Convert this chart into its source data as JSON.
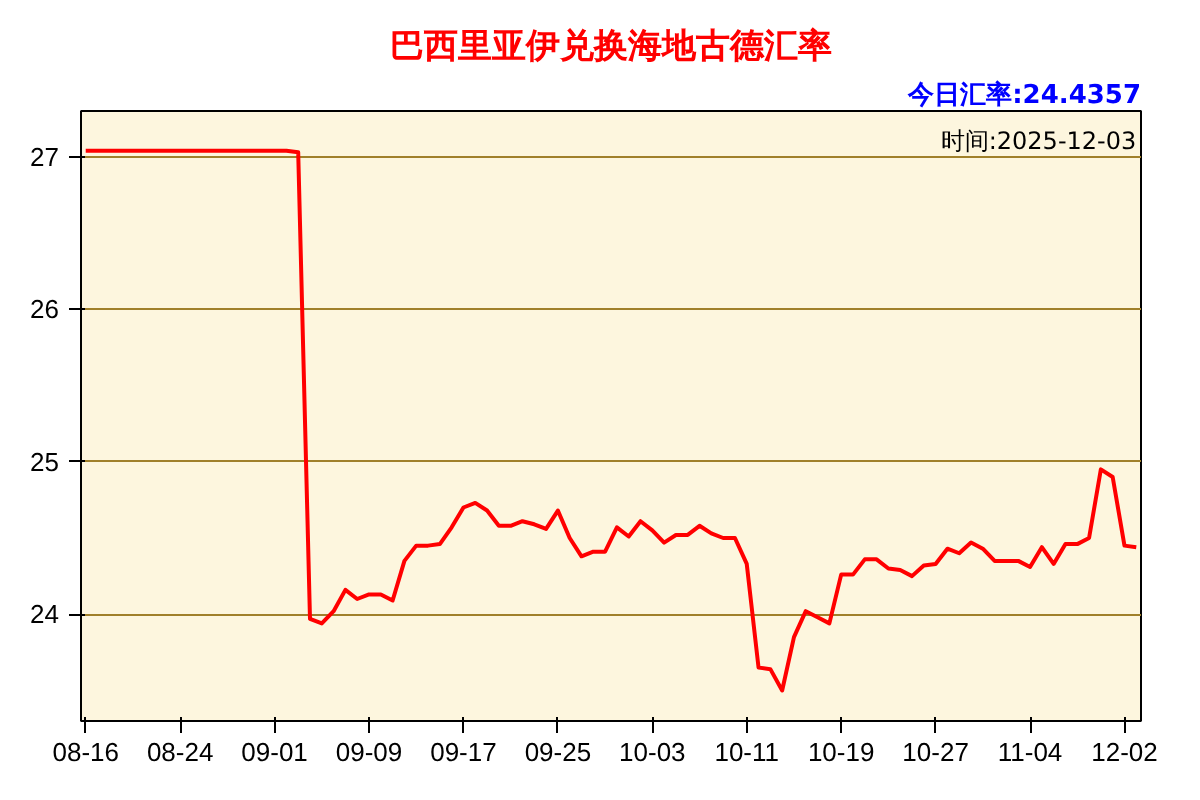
{
  "chart_data": {
    "type": "line",
    "title": "巴西里亚伊兑换海地古德汇率",
    "annotations": [
      "今日汇率:24.4357",
      "时间:2025-12-03"
    ],
    "categories": [
      "08-16",
      null,
      null,
      null,
      null,
      null,
      null,
      null,
      "08-24",
      null,
      null,
      null,
      null,
      null,
      null,
      null,
      "09-01",
      null,
      null,
      null,
      null,
      null,
      null,
      null,
      "09-09",
      null,
      null,
      null,
      null,
      null,
      null,
      null,
      "09-17",
      null,
      null,
      null,
      null,
      null,
      null,
      null,
      "09-25",
      null,
      null,
      null,
      null,
      null,
      null,
      null,
      "10-03",
      null,
      null,
      null,
      null,
      null,
      null,
      null,
      "10-11",
      null,
      null,
      null,
      null,
      null,
      null,
      null,
      "10-19",
      null,
      null,
      null,
      null,
      null,
      null,
      null,
      "10-27",
      null,
      null,
      null,
      null,
      null,
      null,
      null,
      "11-04",
      null,
      null,
      null,
      null,
      null,
      null,
      null,
      "12-02",
      null
    ],
    "series": [
      {
        "color": "#ff0000",
        "values": [
          27.04,
          27.04,
          27.04,
          27.04,
          27.04,
          27.04,
          27.04,
          27.04,
          27.04,
          27.04,
          27.04,
          27.04,
          27.04,
          27.04,
          27.04,
          27.04,
          27.04,
          27.04,
          27.03,
          23.97,
          23.94,
          24.02,
          24.16,
          24.1,
          24.13,
          24.13,
          24.09,
          24.35,
          24.45,
          24.45,
          24.46,
          24.57,
          24.7,
          24.73,
          24.68,
          24.58,
          24.58,
          24.61,
          24.59,
          24.56,
          24.68,
          24.5,
          24.38,
          24.41,
          24.41,
          24.57,
          24.51,
          24.61,
          24.55,
          24.47,
          24.52,
          24.52,
          24.58,
          24.53,
          24.5,
          24.5,
          24.33,
          23.65,
          23.64,
          23.5,
          23.85,
          24.02,
          23.98,
          23.94,
          24.26,
          24.26,
          24.36,
          24.36,
          24.3,
          24.29,
          24.25,
          24.32,
          24.33,
          24.43,
          24.4,
          24.47,
          24.43,
          24.35,
          24.35,
          24.35,
          24.31,
          24.44,
          24.33,
          24.46,
          24.46,
          24.5,
          24.95,
          24.9,
          24.45,
          24.44
        ]
      }
    ],
    "ylim": [
      23.3,
      27.3
    ],
    "yticks": [
      24,
      25,
      26,
      27
    ],
    "grid": "y",
    "marker": "none",
    "line_style": "solid"
  }
}
